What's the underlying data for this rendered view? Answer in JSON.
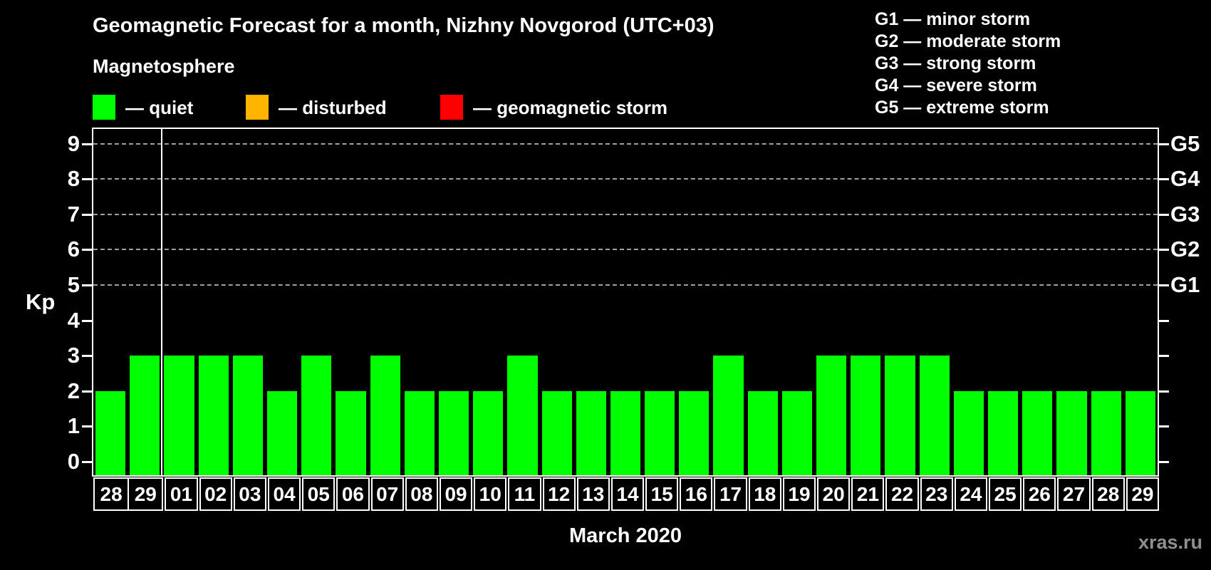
{
  "header": {
    "title": "Geomagnetic Forecast for a month, Nizhny Novgorod (UTC+03)",
    "subtitle": "Magnetosphere"
  },
  "legend": [
    {
      "name": "quiet",
      "label": "— quiet",
      "color": "#00ff00"
    },
    {
      "name": "disturbed",
      "label": "— disturbed",
      "color": "#ffb400"
    },
    {
      "name": "geomagnetic-storm",
      "label": "— geomagnetic storm",
      "color": "#ff0000"
    }
  ],
  "storm_scale": [
    {
      "label": "G1 — minor storm"
    },
    {
      "label": "G2 — moderate storm"
    },
    {
      "label": "G3 — strong storm"
    },
    {
      "label": "G4 — severe storm"
    },
    {
      "label": "G5 — extreme storm"
    }
  ],
  "watermark": "xras.ru",
  "chart_data": {
    "type": "bar",
    "title": "Geomagnetic Forecast for a month, Nizhny Novgorod (UTC+03)",
    "xlabel": "March 2020",
    "ylabel": "Kp",
    "ylim": [
      0,
      9.8
    ],
    "yticks": [
      0,
      1,
      2,
      3,
      4,
      5,
      6,
      7,
      8,
      9
    ],
    "grid": "horizontal dashed lines at Kp 5-9 (G1-G5 levels)",
    "legend_position": "top-left",
    "right_axis": [
      {
        "kp": 5,
        "label": "G1"
      },
      {
        "kp": 6,
        "label": "G2"
      },
      {
        "kp": 7,
        "label": "G3"
      },
      {
        "kp": 8,
        "label": "G4"
      },
      {
        "kp": 9,
        "label": "G5"
      }
    ],
    "categories": [
      "28",
      "29",
      "01",
      "02",
      "03",
      "04",
      "05",
      "06",
      "07",
      "08",
      "09",
      "10",
      "11",
      "12",
      "13",
      "14",
      "15",
      "16",
      "17",
      "18",
      "19",
      "20",
      "21",
      "22",
      "23",
      "24",
      "25",
      "26",
      "27",
      "28",
      "29"
    ],
    "values": [
      2,
      3,
      3,
      3,
      3,
      2,
      3,
      2,
      3,
      2,
      2,
      2,
      3,
      2,
      2,
      2,
      2,
      2,
      3,
      2,
      2,
      3,
      3,
      3,
      3,
      2,
      2,
      2,
      2,
      2,
      2
    ],
    "bar_color": "#00ff00",
    "month_separator_after_index": 1
  }
}
